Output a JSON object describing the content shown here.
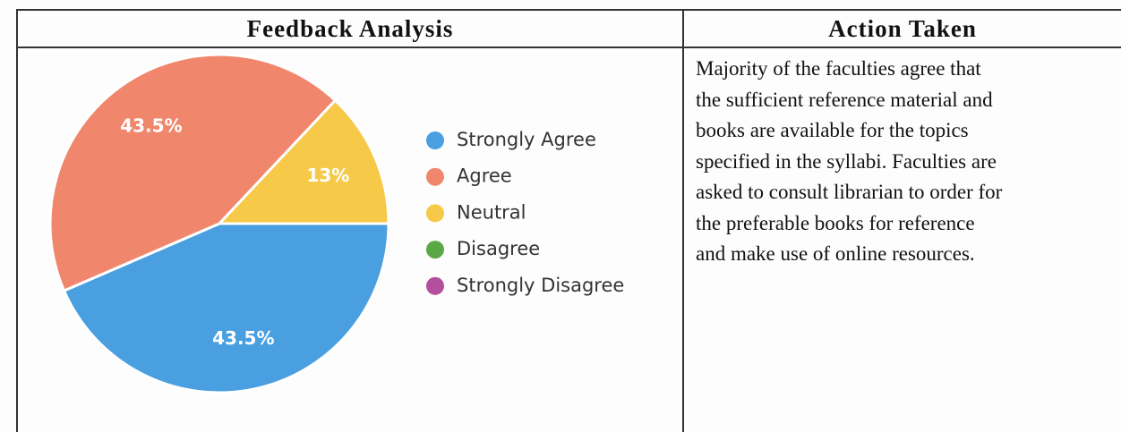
{
  "table": {
    "headers": [
      "Feedback Analysis",
      "Action Taken"
    ],
    "action_taken": [
      "Majority of the faculties agree that",
      "the sufficient reference material and",
      "books are available for the topics",
      "specified in the syllabi. Faculties are",
      "asked to consult librarian to order for",
      "the preferable books for reference",
      "and make use of online resources."
    ]
  },
  "chart_data": {
    "type": "pie",
    "categories": [
      "Strongly Agree",
      "Agree",
      "Neutral",
      "Disagree",
      "Strongly Disagree"
    ],
    "values": [
      43.5,
      43.5,
      13,
      0,
      0
    ],
    "value_labels": [
      "43.5%",
      "43.5%",
      "13%",
      null,
      null
    ],
    "colors": [
      "#4a9fe0",
      "#f0876c",
      "#f7c948",
      "#5aa845",
      "#b34f9c"
    ],
    "legend": "right"
  }
}
